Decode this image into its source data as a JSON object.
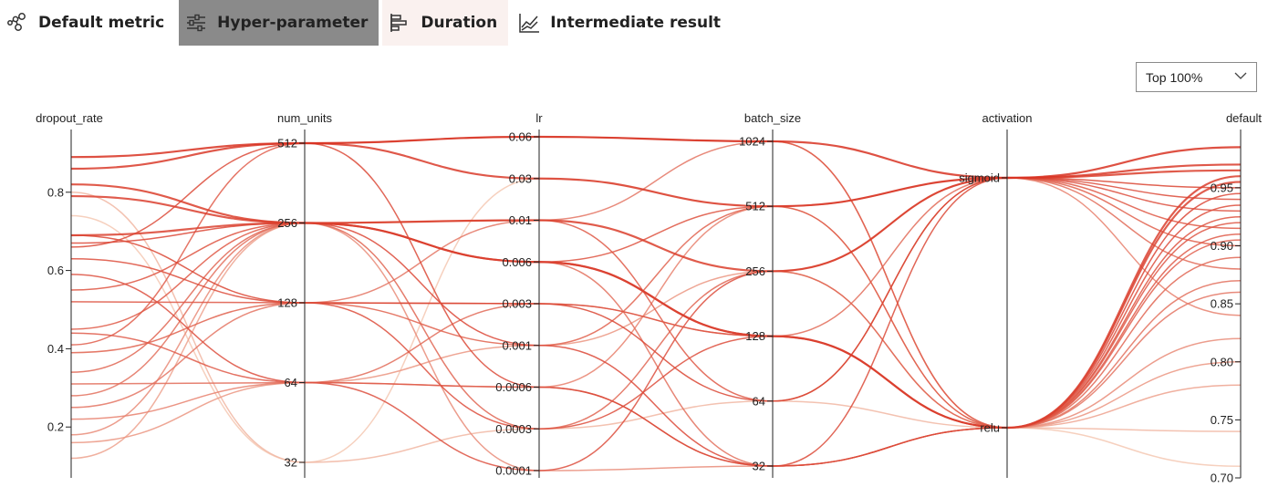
{
  "tabs": [
    {
      "label": "Default metric",
      "icon": "metric-nodes-icon",
      "state": "normal"
    },
    {
      "label": "Hyper-parameter",
      "icon": "sliders-icon",
      "state": "active"
    },
    {
      "label": "Duration",
      "icon": "bar-duration-icon",
      "state": "hover"
    },
    {
      "label": "Intermediate result",
      "icon": "line-chart-icon",
      "state": "normal"
    }
  ],
  "filter": {
    "value": "Top 100%"
  },
  "chart_data": {
    "type": "parallel_coordinates",
    "axes": [
      {
        "name": "dropout_rate",
        "scale": "linear",
        "range": [
          0.07,
          0.93
        ],
        "ticks": [
          0.8,
          0.6,
          0.4,
          0.2
        ],
        "tick_labels": [
          "0.8",
          "0.6",
          "0.4",
          "0.2"
        ]
      },
      {
        "name": "num_units",
        "scale": "categorical",
        "categories": [
          512,
          256,
          128,
          64,
          32
        ],
        "tick_labels": [
          "512",
          "256",
          "128",
          "64",
          "32"
        ]
      },
      {
        "name": "lr",
        "scale": "categorical",
        "categories": [
          0.06,
          0.03,
          0.01,
          0.006,
          0.003,
          0.001,
          0.0006,
          0.0003,
          0.0001
        ],
        "tick_labels": [
          "0.06",
          "0.03",
          "0.01",
          "0.006",
          "0.003",
          "0.001",
          "0.0006",
          "0.0003",
          "0.0001"
        ]
      },
      {
        "name": "batch_size",
        "scale": "categorical",
        "categories": [
          1024,
          512,
          256,
          128,
          64,
          32
        ],
        "tick_labels": [
          "1024",
          "512",
          "256",
          "128",
          "64",
          "32"
        ]
      },
      {
        "name": "activation",
        "scale": "categorical",
        "categories": [
          "sigmoid",
          "relu"
        ],
        "tick_labels": [
          "sigmoid",
          "relu"
        ]
      },
      {
        "name": "default",
        "scale": "linear",
        "range": [
          0.7,
          0.99
        ],
        "ticks": [
          0.95,
          0.9,
          0.85,
          0.8,
          0.75,
          0.7
        ],
        "tick_labels": [
          "0.95",
          "0.90",
          "0.85",
          "0.80",
          "0.75",
          "0.70"
        ]
      }
    ],
    "color_scale": {
      "low": "#f5cdb8",
      "high": "#d7301f",
      "by": "default"
    },
    "trials": [
      [
        0.89,
        512,
        0.06,
        1024,
        "sigmoid",
        0.985
      ],
      [
        0.86,
        512,
        0.03,
        512,
        "sigmoid",
        0.97
      ],
      [
        0.82,
        256,
        0.01,
        256,
        "sigmoid",
        0.965
      ],
      [
        0.79,
        256,
        0.006,
        128,
        "relu",
        0.96
      ],
      [
        0.69,
        256,
        0.006,
        128,
        "relu",
        0.955
      ],
      [
        0.69,
        128,
        0.003,
        64,
        "sigmoid",
        0.95
      ],
      [
        0.67,
        256,
        0.001,
        32,
        "relu",
        0.945
      ],
      [
        0.66,
        512,
        0.0006,
        32,
        "sigmoid",
        0.94
      ],
      [
        0.63,
        128,
        0.0003,
        128,
        "relu",
        0.935
      ],
      [
        0.59,
        64,
        0.0001,
        256,
        "sigmoid",
        0.93
      ],
      [
        0.55,
        256,
        0.006,
        512,
        "relu",
        0.925
      ],
      [
        0.52,
        128,
        0.003,
        128,
        "relu",
        0.92
      ],
      [
        0.45,
        256,
        0.01,
        64,
        "sigmoid",
        0.915
      ],
      [
        0.44,
        64,
        0.0006,
        32,
        "relu",
        0.91
      ],
      [
        0.41,
        512,
        0.06,
        1024,
        "relu",
        0.905
      ],
      [
        0.39,
        128,
        0.001,
        512,
        "sigmoid",
        0.9
      ],
      [
        0.34,
        256,
        0.0003,
        256,
        "relu",
        0.89
      ],
      [
        0.31,
        64,
        0.003,
        128,
        "sigmoid",
        0.88
      ],
      [
        0.28,
        256,
        0.006,
        32,
        "relu",
        0.87
      ],
      [
        0.25,
        128,
        0.01,
        1024,
        "relu",
        0.86
      ],
      [
        0.22,
        64,
        0.0006,
        512,
        "sigmoid",
        0.84
      ],
      [
        0.18,
        256,
        0.0001,
        32,
        "relu",
        0.82
      ],
      [
        0.16,
        64,
        0.001,
        256,
        "relu",
        0.8
      ],
      [
        0.12,
        256,
        0.006,
        128,
        "relu",
        0.78
      ],
      [
        0.74,
        32,
        0.03,
        512,
        "relu",
        0.71
      ],
      [
        0.8,
        32,
        0.0003,
        64,
        "relu",
        0.74
      ]
    ]
  }
}
